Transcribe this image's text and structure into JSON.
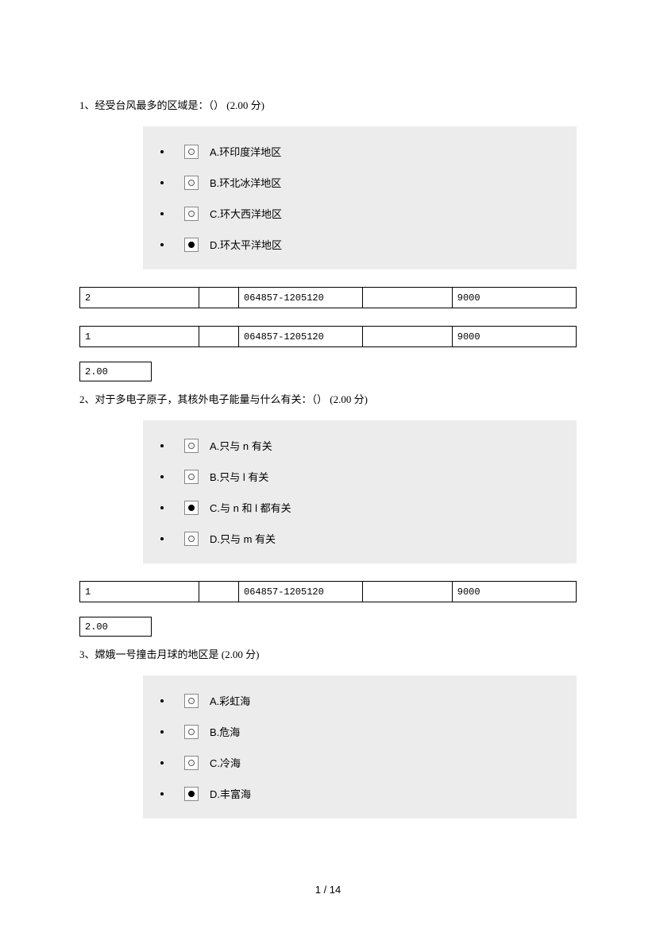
{
  "questions": [
    {
      "number": "1",
      "text": "1、经受台风最多的区域是：（）  (2.00 分)",
      "options": [
        {
          "letter": "A.",
          "label": "环印度洋地区",
          "selected": false
        },
        {
          "letter": "B.",
          "label": "环北冰洋地区",
          "selected": false
        },
        {
          "letter": "C.",
          "label": "环大西洋地区",
          "selected": false
        },
        {
          "letter": "D.",
          "label": "环太平洋地区",
          "selected": true
        }
      ],
      "tables": [
        {
          "cols": [
            "2",
            "",
            "064857-1205120",
            "",
            "9000"
          ]
        },
        {
          "cols": [
            "1",
            "",
            "064857-1205120",
            "",
            "9000"
          ]
        }
      ],
      "score_cell": "2.00"
    },
    {
      "number": "2",
      "text": "2、对于多电子原子，其核外电子能量与什么有关：（）  (2.00 分)",
      "options": [
        {
          "letter": "A.",
          "label": "只与 n 有关",
          "selected": false
        },
        {
          "letter": "B.",
          "label": "只与 l 有关",
          "selected": false
        },
        {
          "letter": "C.",
          "label": "与 n 和 l 都有关",
          "selected": true
        },
        {
          "letter": "D.",
          "label": "只与 m 有关",
          "selected": false
        }
      ],
      "tables": [
        {
          "cols": [
            "1",
            "",
            "064857-1205120",
            "",
            "9000"
          ]
        }
      ],
      "score_cell": "2.00"
    },
    {
      "number": "3",
      "text": "3、嫦娥一号撞击月球的地区是  (2.00 分)",
      "options": [
        {
          "letter": "A.",
          "label": "彩虹海",
          "selected": false
        },
        {
          "letter": "B.",
          "label": "危海",
          "selected": false
        },
        {
          "letter": "C.",
          "label": "冷海",
          "selected": false
        },
        {
          "letter": "D.",
          "label": "丰富海",
          "selected": true
        }
      ],
      "tables": [],
      "score_cell": null
    }
  ],
  "table_col_widths": [
    "24%",
    "8%",
    "25%",
    "18%",
    "25%"
  ],
  "footer": {
    "current": "1",
    "sep": " / ",
    "total": "14"
  }
}
